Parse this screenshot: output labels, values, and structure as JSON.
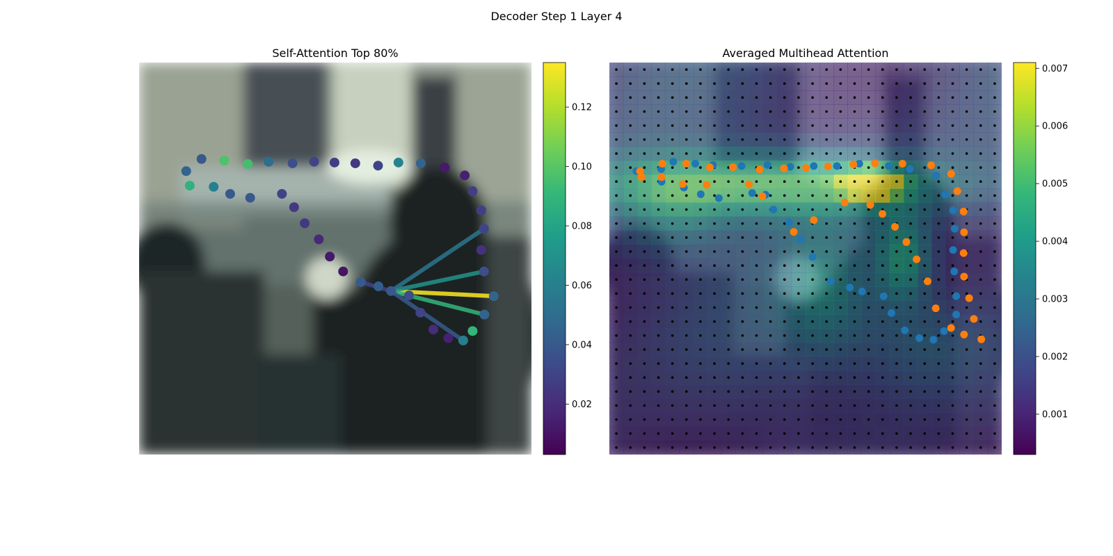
{
  "figure": {
    "suptitle": "Decoder Step 1 Layer 4"
  },
  "colormap": [
    "#440154",
    "#482878",
    "#3e4989",
    "#31688e",
    "#26828e",
    "#1f9e89",
    "#35b779",
    "#6ece58",
    "#b5de2b",
    "#fde725"
  ],
  "chart_data": [
    {
      "type": "scatter",
      "title": "Self-Attention Top 80%",
      "background": "blurred camera image (photo of a person at a desk, dark foreground)",
      "colorbar": {
        "min": 0.003,
        "max": 0.135,
        "ticks": [
          "0.02",
          "0.04",
          "0.06",
          "0.08",
          "0.10",
          "0.12"
        ],
        "tick_values": [
          0.02,
          0.04,
          0.06,
          0.08,
          0.1,
          0.12
        ]
      },
      "query_point": [
        0.642,
        0.583
      ],
      "points": [
        {
          "x": 0.12,
          "y": 0.277,
          "v": 0.045
        },
        {
          "x": 0.159,
          "y": 0.246,
          "v": 0.04
        },
        {
          "x": 0.217,
          "y": 0.25,
          "v": 0.098
        },
        {
          "x": 0.277,
          "y": 0.259,
          "v": 0.095
        },
        {
          "x": 0.33,
          "y": 0.253,
          "v": 0.05
        },
        {
          "x": 0.391,
          "y": 0.257,
          "v": 0.035
        },
        {
          "x": 0.446,
          "y": 0.253,
          "v": 0.03
        },
        {
          "x": 0.498,
          "y": 0.255,
          "v": 0.028
        },
        {
          "x": 0.551,
          "y": 0.257,
          "v": 0.025
        },
        {
          "x": 0.609,
          "y": 0.263,
          "v": 0.03
        },
        {
          "x": 0.661,
          "y": 0.255,
          "v": 0.062
        },
        {
          "x": 0.718,
          "y": 0.257,
          "v": 0.045
        },
        {
          "x": 0.779,
          "y": 0.268,
          "v": 0.012
        },
        {
          "x": 0.83,
          "y": 0.288,
          "v": 0.015
        },
        {
          "x": 0.85,
          "y": 0.328,
          "v": 0.028
        },
        {
          "x": 0.872,
          "y": 0.377,
          "v": 0.028
        },
        {
          "x": 0.879,
          "y": 0.424,
          "v": 0.03
        },
        {
          "x": 0.872,
          "y": 0.478,
          "v": 0.022
        },
        {
          "x": 0.879,
          "y": 0.533,
          "v": 0.035
        },
        {
          "x": 0.904,
          "y": 0.596,
          "v": 0.045
        },
        {
          "x": 0.88,
          "y": 0.643,
          "v": 0.045
        },
        {
          "x": 0.85,
          "y": 0.685,
          "v": 0.09
        },
        {
          "x": 0.826,
          "y": 0.709,
          "v": 0.06
        },
        {
          "x": 0.788,
          "y": 0.703,
          "v": 0.015
        },
        {
          "x": 0.75,
          "y": 0.681,
          "v": 0.02
        },
        {
          "x": 0.717,
          "y": 0.638,
          "v": 0.03
        },
        {
          "x": 0.688,
          "y": 0.594,
          "v": 0.035
        },
        {
          "x": 0.642,
          "y": 0.583,
          "v": 0.04
        },
        {
          "x": 0.61,
          "y": 0.571,
          "v": 0.042
        },
        {
          "x": 0.565,
          "y": 0.56,
          "v": 0.04
        },
        {
          "x": 0.52,
          "y": 0.533,
          "v": 0.01
        },
        {
          "x": 0.486,
          "y": 0.495,
          "v": 0.012
        },
        {
          "x": 0.458,
          "y": 0.451,
          "v": 0.018
        },
        {
          "x": 0.422,
          "y": 0.41,
          "v": 0.025
        },
        {
          "x": 0.395,
          "y": 0.369,
          "v": 0.025
        },
        {
          "x": 0.364,
          "y": 0.335,
          "v": 0.03
        },
        {
          "x": 0.283,
          "y": 0.345,
          "v": 0.04
        },
        {
          "x": 0.232,
          "y": 0.335,
          "v": 0.04
        },
        {
          "x": 0.19,
          "y": 0.317,
          "v": 0.06
        },
        {
          "x": 0.129,
          "y": 0.314,
          "v": 0.088
        }
      ],
      "top_attention_lines": [
        {
          "to": [
            0.904,
            0.596
          ],
          "w": 0.135
        },
        {
          "to": [
            0.88,
            0.643
          ],
          "w": 0.09
        },
        {
          "to": [
            0.879,
            0.533
          ],
          "w": 0.07
        },
        {
          "to": [
            0.879,
            0.424
          ],
          "w": 0.055
        },
        {
          "to": [
            0.826,
            0.709
          ],
          "w": 0.04
        },
        {
          "to": [
            0.565,
            0.56
          ],
          "w": 0.03
        }
      ]
    },
    {
      "type": "heatmap",
      "title": "Averaged Multihead Attention",
      "background": "attention heatmap (28x28) blended over the same blurred photo",
      "grid_size": 28,
      "colorbar": {
        "min": 0.0003,
        "max": 0.0071,
        "ticks": [
          "0.001",
          "0.002",
          "0.003",
          "0.004",
          "0.005",
          "0.006",
          "0.007"
        ],
        "tick_values": [
          0.001,
          0.002,
          0.003,
          0.004,
          0.005,
          0.006,
          0.007
        ]
      },
      "hotspots": [
        {
          "cx": 0.67,
          "cy": 0.31,
          "sx": 0.05,
          "sy": 0.025,
          "a": 1.0
        },
        {
          "cx": 0.41,
          "cy": 0.31,
          "sx": 0.33,
          "sy": 0.06,
          "a": 0.55
        },
        {
          "cx": 0.75,
          "cy": 0.5,
          "sx": 0.05,
          "sy": 0.08,
          "a": 0.45
        },
        {
          "cx": 0.55,
          "cy": 0.58,
          "sx": 0.08,
          "sy": 0.12,
          "a": 0.28
        },
        {
          "cx": 0.8,
          "cy": 0.72,
          "sx": 0.12,
          "sy": 0.1,
          "a": 0.22
        },
        {
          "cx": 0.15,
          "cy": 0.38,
          "sx": 0.1,
          "sy": 0.08,
          "a": 0.25
        }
      ],
      "series_blue": [
        [
          0.069,
          0.277
        ],
        [
          0.132,
          0.272
        ],
        [
          0.163,
          0.253
        ],
        [
          0.219,
          0.258
        ],
        [
          0.264,
          0.261
        ],
        [
          0.337,
          0.264
        ],
        [
          0.403,
          0.261
        ],
        [
          0.461,
          0.266
        ],
        [
          0.521,
          0.264
        ],
        [
          0.58,
          0.264
        ],
        [
          0.637,
          0.258
        ],
        [
          0.712,
          0.264
        ],
        [
          0.766,
          0.272
        ],
        [
          0.833,
          0.288
        ],
        [
          0.856,
          0.337
        ],
        [
          0.876,
          0.377
        ],
        [
          0.88,
          0.424
        ],
        [
          0.876,
          0.478
        ],
        [
          0.879,
          0.533
        ],
        [
          0.884,
          0.596
        ],
        [
          0.884,
          0.643
        ],
        [
          0.853,
          0.685
        ],
        [
          0.826,
          0.707
        ],
        [
          0.79,
          0.703
        ],
        [
          0.753,
          0.683
        ],
        [
          0.719,
          0.639
        ],
        [
          0.699,
          0.596
        ],
        [
          0.644,
          0.584
        ],
        [
          0.613,
          0.574
        ],
        [
          0.564,
          0.558
        ],
        [
          0.518,
          0.496
        ],
        [
          0.486,
          0.451
        ],
        [
          0.458,
          0.408
        ],
        [
          0.418,
          0.375
        ],
        [
          0.398,
          0.337
        ],
        [
          0.364,
          0.333
        ],
        [
          0.279,
          0.346
        ],
        [
          0.233,
          0.336
        ],
        [
          0.19,
          0.319
        ],
        [
          0.133,
          0.304
        ]
      ],
      "series_orange": [
        [
          0.078,
          0.277
        ],
        [
          0.082,
          0.292
        ],
        [
          0.135,
          0.258
        ],
        [
          0.196,
          0.258
        ],
        [
          0.256,
          0.267
        ],
        [
          0.315,
          0.267
        ],
        [
          0.383,
          0.273
        ],
        [
          0.445,
          0.27
        ],
        [
          0.501,
          0.269
        ],
        [
          0.557,
          0.265
        ],
        [
          0.622,
          0.26
        ],
        [
          0.677,
          0.257
        ],
        [
          0.747,
          0.258
        ],
        [
          0.82,
          0.262
        ],
        [
          0.871,
          0.284
        ],
        [
          0.887,
          0.328
        ],
        [
          0.903,
          0.38
        ],
        [
          0.904,
          0.433
        ],
        [
          0.903,
          0.486
        ],
        [
          0.904,
          0.546
        ],
        [
          0.917,
          0.601
        ],
        [
          0.929,
          0.654
        ],
        [
          0.904,
          0.694
        ],
        [
          0.948,
          0.706
        ],
        [
          0.871,
          0.677
        ],
        [
          0.832,
          0.627
        ],
        [
          0.811,
          0.558
        ],
        [
          0.783,
          0.502
        ],
        [
          0.757,
          0.458
        ],
        [
          0.728,
          0.419
        ],
        [
          0.696,
          0.386
        ],
        [
          0.665,
          0.363
        ],
        [
          0.6,
          0.357
        ],
        [
          0.521,
          0.402
        ],
        [
          0.47,
          0.432
        ],
        [
          0.39,
          0.341
        ],
        [
          0.356,
          0.311
        ],
        [
          0.248,
          0.312
        ],
        [
          0.187,
          0.31
        ],
        [
          0.133,
          0.292
        ]
      ],
      "dot_grid": true
    }
  ]
}
